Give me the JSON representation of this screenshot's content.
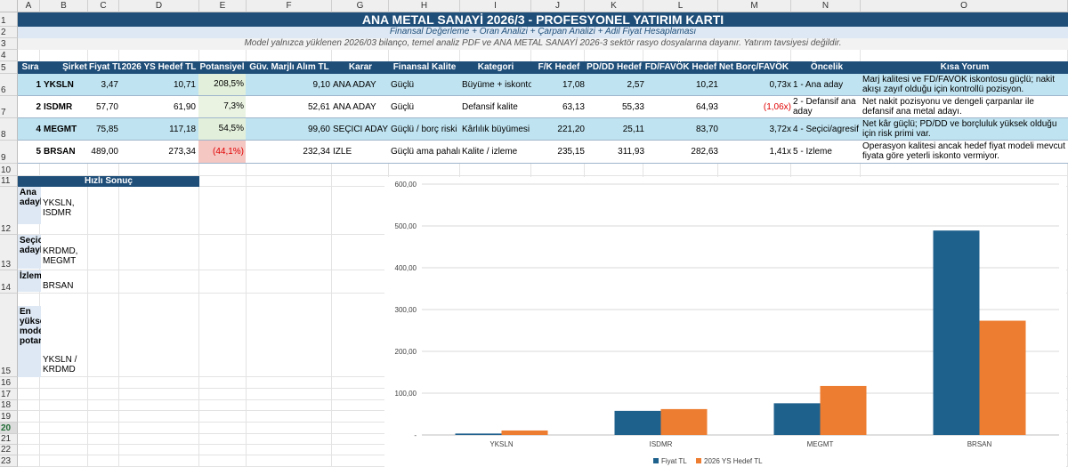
{
  "columns": [
    "A",
    "B",
    "C",
    "D",
    "E",
    "F",
    "G",
    "H",
    "I",
    "J",
    "K",
    "L",
    "M",
    "N",
    "O"
  ],
  "rows": [
    "1",
    "2",
    "3",
    "4",
    "5",
    "6",
    "7",
    "8",
    "9",
    "10",
    "11",
    "12",
    "13",
    "14",
    "15",
    "16",
    "17",
    "18",
    "19",
    "20",
    "21",
    "22",
    "23"
  ],
  "title": "ANA METAL SANAYİ 2026/3 - PROFESYONEL YATIRIM KARTI",
  "subtitle": "Finansal Değerleme + Oran Analizi + Çarpan Analizi + Adil Fiyat Hesaplaması",
  "note": "Model yalnızca yüklenen 2026/03 bilanço, temel analiz PDF ve ANA METAL SANAYİ 2026-3 sektör rasyo dosyalarına dayanır. Yatırım tavsiyesi değildir.",
  "headers": {
    "sira": "Sıra",
    "sirket": "Şirket",
    "fiyat": "Fiyat TL",
    "hedef": "2026 YS Hedef TL",
    "potansiyel": "Potansiyel",
    "guv": "Güv. Marjlı Alım TL",
    "karar": "Karar",
    "kalite": "Finansal Kalite",
    "kategori": "Kategori",
    "fk": "F/K Hedef",
    "pddd": "PD/DD Hedef",
    "fdfavok": "FD/FAVÖK Hedef",
    "netborc": "Net Borç/FAVÖK",
    "oncelik": "Öncelik",
    "yorum": "Kısa Yorum"
  },
  "table": [
    {
      "sira": "1",
      "sirket": "YKSLN",
      "fiyat": "3,47",
      "hedef": "10,71",
      "potansiyel": "208,5%",
      "guv": "9,10",
      "karar": "ANA ADAY",
      "kalite": "Güçlü",
      "kategori": "Büyüme + iskonto",
      "fk": "17,08",
      "pddd": "2,57",
      "fdfavok": "10,21",
      "netborc": "0,73x",
      "oncelik": "1 - Ana aday",
      "yorum": "Marj kalitesi ve FD/FAVÖK iskontosu güçlü; nakit akışı zayıf olduğu için kontrollü pozisyon."
    },
    {
      "sira": "2",
      "sirket": "ISDMR",
      "fiyat": "57,70",
      "hedef": "61,90",
      "potansiyel": "7,3%",
      "guv": "52,61",
      "karar": "ANA ADAY",
      "kalite": "Güçlü",
      "kategori": "Defansif kalite",
      "fk": "63,13",
      "pddd": "55,33",
      "fdfavok": "64,93",
      "netborc": "(1,06x)",
      "oncelik": "2 - Defansif ana aday",
      "yorum": "Net nakit pozisyonu ve dengeli çarpanlar ile defansif ana metal adayı."
    },
    {
      "sira": "4",
      "sirket": "MEGMT",
      "fiyat": "75,85",
      "hedef": "117,18",
      "potansiyel": "54,5%",
      "guv": "99,60",
      "karar": "SEÇİCİ ADAY",
      "kalite": "Güçlü / borç riski",
      "kategori": "Kârlılık büyümesi",
      "fk": "221,20",
      "pddd": "25,11",
      "fdfavok": "83,70",
      "netborc": "3,72x",
      "oncelik": "4 - Seçici/agresif",
      "yorum": "Net kâr güçlü; PD/DD ve borçluluk yüksek olduğu için risk primi var."
    },
    {
      "sira": "5",
      "sirket": "BRSAN",
      "fiyat": "489,00",
      "hedef": "273,34",
      "potansiyel": "(44,1%)",
      "guv": "232,34",
      "karar": "İZLE",
      "kalite": "Güçlü ama pahalı",
      "kategori": "Kalite / izleme",
      "fk": "235,15",
      "pddd": "311,93",
      "fdfavok": "282,63",
      "netborc": "1,41x",
      "oncelik": "5 - İzleme",
      "yorum": "Operasyon kalitesi ancak hedef fiyat modeli mevcut fiyata göre yeterli iskonto vermiyor."
    }
  ],
  "quick": {
    "title": "Hızlı Sonuç",
    "items": [
      {
        "label": "Ana adaylar",
        "value": "YKSLN, ISDMR"
      },
      {
        "label": "Seçici adaylar",
        "value": "KRDMD, MEGMT"
      },
      {
        "label": "İzleme",
        "value": "BRSAN"
      },
      {
        "label": "En yüksek model potansiyeli",
        "value": "YKSLN / KRDMD"
      }
    ]
  },
  "chart_data": {
    "type": "bar",
    "categories": [
      "YKSLN",
      "ISDMR",
      "MEGMT",
      "BRSAN"
    ],
    "series": [
      {
        "name": "Fiyat TL",
        "values": [
          3.47,
          57.7,
          75.85,
          489.0
        ],
        "color": "#1f618d"
      },
      {
        "name": "2026 YS Hedef TL",
        "values": [
          10.71,
          61.9,
          117.18,
          273.34
        ],
        "color": "#ed7d31"
      }
    ],
    "yticks": [
      "-",
      "100,00",
      "200,00",
      "300,00",
      "400,00",
      "500,00",
      "600,00"
    ],
    "ylim": [
      0,
      600
    ],
    "legend_position": "bottom"
  }
}
